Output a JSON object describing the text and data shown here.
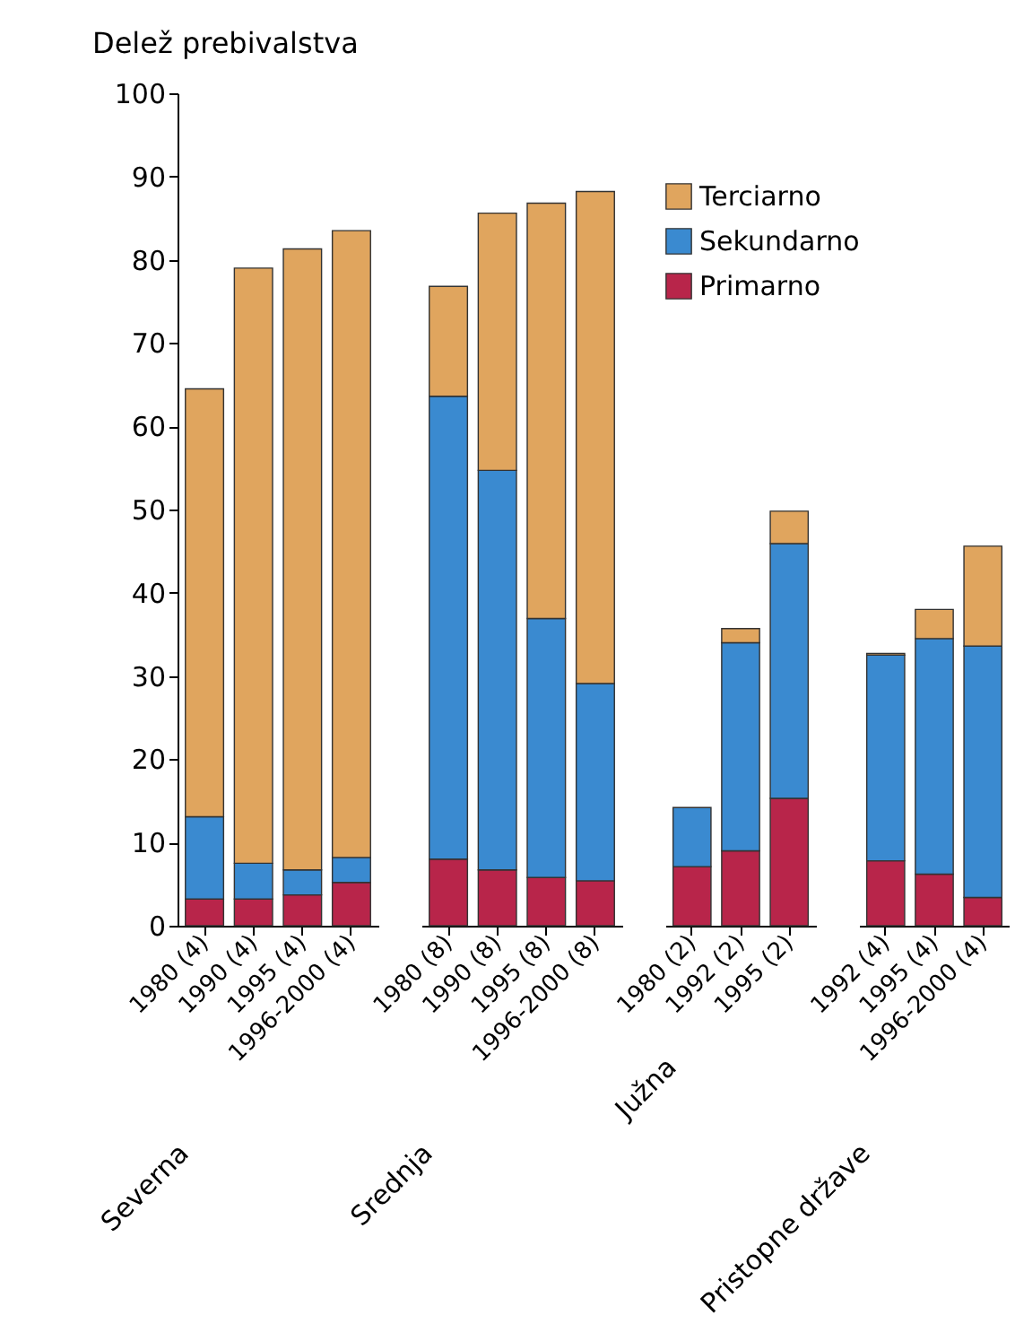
{
  "chart_data": [
    {
      "type": "bar",
      "stacked": true,
      "xlabel": "Severna",
      "ylabel": "Delež prebivalstva",
      "categories": [
        "1980 (4)",
        "1990 (4)",
        "1995 (4)",
        "1996-2000 (4)"
      ],
      "ylim": [
        0,
        100
      ],
      "yticks": [
        0,
        10,
        20,
        30,
        40,
        50,
        60,
        70,
        80,
        90,
        100
      ],
      "legend": "top right",
      "series": [
        {
          "name": "Primarno",
          "color": "#b8254a",
          "values": [
            3.2,
            3.2,
            3.7,
            5.2
          ]
        },
        {
          "name": "Sekundarno",
          "color": "#3a8ad0",
          "values": [
            9.9,
            4.3,
            3,
            3
          ]
        },
        {
          "name": "Terciarno",
          "color": "#e0a55e",
          "values": [
            51.4,
            71.5,
            74.6,
            75.3
          ]
        }
      ]
    },
    {
      "type": "bar",
      "stacked": true,
      "xlabel": "Srednja",
      "categories": [
        "1980 (8)",
        "1990 (8)",
        "1995 (8)",
        "1996-2000 (8)"
      ],
      "ylim": [
        0,
        100
      ],
      "yticks": [
        0,
        10,
        20,
        30,
        40,
        50,
        60,
        70,
        80,
        90,
        100
      ],
      "tick_labels": "x",
      "legend": "top right",
      "series": [
        {
          "name": "Primarno",
          "color": "#b8254a",
          "values": [
            8,
            6.7,
            5.8,
            5.4
          ]
        },
        {
          "name": "Sekundarno",
          "color": "#3a8ad0",
          "values": [
            55.6,
            48,
            31.1,
            23.7
          ]
        },
        {
          "name": "Terciarno",
          "color": "#e0a55e",
          "values": [
            13.2,
            30.9,
            49.9,
            59.1
          ]
        }
      ]
    },
    {
      "type": "bar",
      "stacked": true,
      "xlabel": "Južna",
      "categories": [
        "1980 (2)",
        "1992 (2)",
        "1995 (2)"
      ],
      "ylim": [
        0,
        100
      ],
      "yticks": [
        0,
        10,
        20,
        30,
        40,
        50,
        60,
        70,
        80,
        90,
        100
      ],
      "tick_labels": "x",
      "legend": "top right",
      "series": [
        {
          "name": "Primarno",
          "color": "#b8254a",
          "values": [
            7.1,
            9,
            15.3
          ]
        },
        {
          "name": "Sekundarno",
          "color": "#3a8ad0",
          "values": [
            7.1,
            25,
            30.6
          ]
        },
        {
          "name": "Terciarno",
          "color": "#e0a55e",
          "values": [
            null,
            1.7,
            3.9
          ]
        }
      ]
    },
    {
      "type": "bar",
      "stacked": true,
      "xlabel": "Pristopne države",
      "categories": [
        "1992 (4)",
        "1995 (4)",
        "1996-2000 (4)"
      ],
      "ylim": [
        0,
        100
      ],
      "yticks": [
        0,
        10,
        20,
        30,
        40,
        50,
        60,
        70,
        80,
        90,
        100
      ],
      "tick_labels": "x",
      "legend": "top right",
      "series": [
        {
          "name": "Primarno",
          "color": "#b8254a",
          "values": [
            7.8,
            6.2,
            3.4
          ]
        },
        {
          "name": "Sekundarno",
          "color": "#3a8ad0",
          "values": [
            24.7,
            28.3,
            30.2
          ]
        },
        {
          "name": "Terciarno",
          "color": "#e0a55e",
          "values": [
            0.2,
            3.5,
            12
          ]
        }
      ]
    }
  ]
}
